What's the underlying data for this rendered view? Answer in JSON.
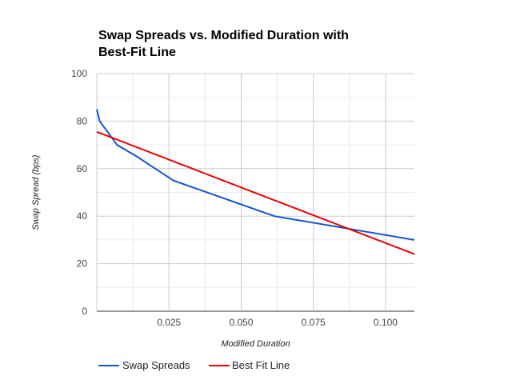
{
  "chart_data": {
    "type": "line",
    "title": "Swap Spreads vs. Modified Duration with Best-Fit Line",
    "xlabel": "Modified Duration",
    "ylabel": "Swap Spread (bps)",
    "xlim": [
      0,
      0.11
    ],
    "ylim": [
      0,
      100
    ],
    "x_ticks": [
      0.025,
      0.05,
      0.075,
      0.1
    ],
    "x_tick_labels": [
      "0.025",
      "0.050",
      "0.075",
      "0.100"
    ],
    "y_ticks": [
      0,
      20,
      40,
      60,
      80,
      100
    ],
    "y_tick_labels": [
      "0",
      "20",
      "40",
      "60",
      "80",
      "100"
    ],
    "grid": true,
    "legend": "bottom-left",
    "series": [
      {
        "name": "Swap Spreads",
        "color": "#1155cc",
        "x": [
          0.0,
          0.001,
          0.007,
          0.014,
          0.0265,
          0.0615,
          0.11
        ],
        "y": [
          85,
          80,
          70,
          65,
          55,
          40,
          30
        ]
      },
      {
        "name": "Best Fit Line",
        "color": "#ee0000",
        "x": [
          0.0,
          0.11
        ],
        "y": [
          75.5,
          24
        ]
      }
    ]
  }
}
